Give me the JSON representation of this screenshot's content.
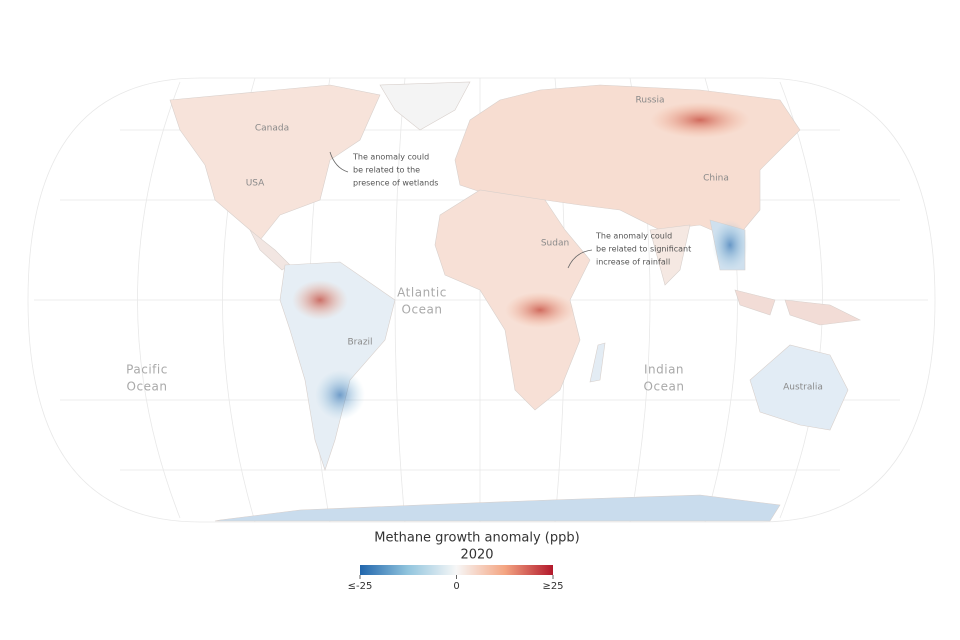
{
  "map": {
    "labels": [
      "Canada",
      "USA",
      "Russia",
      "China",
      "Sudan",
      "Brazil",
      "Australia"
    ],
    "oceans": [
      [
        "Atlantic",
        "Ocean"
      ],
      [
        "Pacific",
        "Ocean"
      ],
      [
        "Indian",
        "Ocean"
      ]
    ],
    "annotations": [
      [
        "The anomaly could",
        "be related to the",
        "presence of wetlands"
      ],
      [
        "The anomaly could",
        "be related to significant",
        "increase of rainfall"
      ]
    ]
  },
  "legend": {
    "title": "Methane growth anomaly (ppb)",
    "subtitle": "2020",
    "ticks": [
      {
        "value": -25,
        "label": "≤-25"
      },
      0,
      {
        "value": 25,
        "label": "≥25"
      }
    ]
  }
}
